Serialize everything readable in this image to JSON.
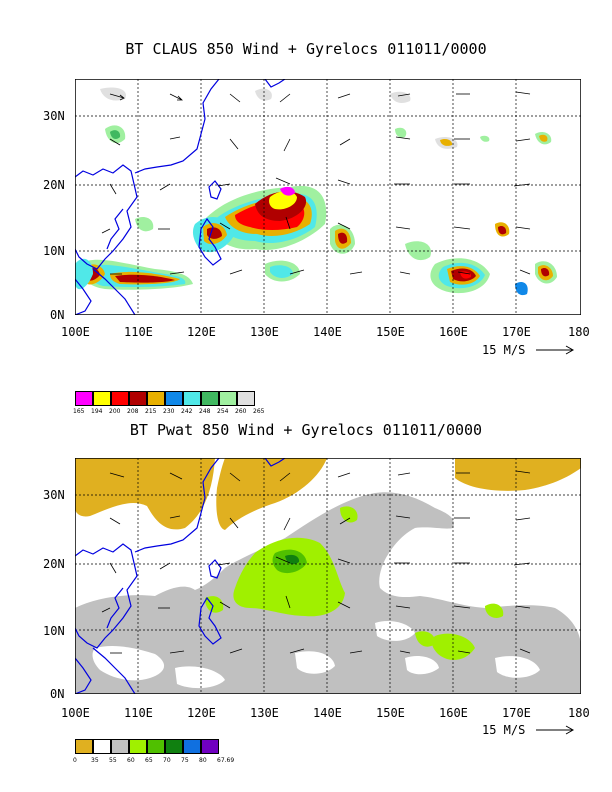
{
  "panel1": {
    "title": "BT CLAUS 850 Wind + Gyrelocs 011011/0000",
    "ylabels": [
      "30N",
      "20N",
      "10N",
      "0N"
    ],
    "xlabels": [
      "100E",
      "110E",
      "120E",
      "130E",
      "140E",
      "150E",
      "160E",
      "170E",
      "180"
    ],
    "scale_label": "15 M/S",
    "legend": {
      "colors": [
        "#ff00ff",
        "#ffff00",
        "#ff0000",
        "#b00000",
        "#e8b000",
        "#1088e8",
        "#50e8e8",
        "#40b860",
        "#a0f0a0",
        "#e0e0e0"
      ],
      "labels": [
        "165",
        "194",
        "200",
        "208",
        "215",
        "230",
        "242",
        "248",
        "254",
        "260",
        "265"
      ]
    }
  },
  "panel2": {
    "title": "BT Pwat 850 Wind + Gyrelocs 011011/0000",
    "ylabels": [
      "30N",
      "20N",
      "10N",
      "0N"
    ],
    "xlabels": [
      "100E",
      "110E",
      "120E",
      "130E",
      "140E",
      "150E",
      "160E",
      "170E",
      "180"
    ],
    "scale_label": "15 M/S",
    "legend": {
      "colors": [
        "#e0b020",
        "#ffffff",
        "#c0c0c0",
        "#a0f000",
        "#50c000",
        "#108010",
        "#1070e0",
        "#7000c0"
      ],
      "labels": [
        "0",
        "35",
        "55",
        "60",
        "65",
        "70",
        "75",
        "80",
        "67.69"
      ]
    }
  }
}
